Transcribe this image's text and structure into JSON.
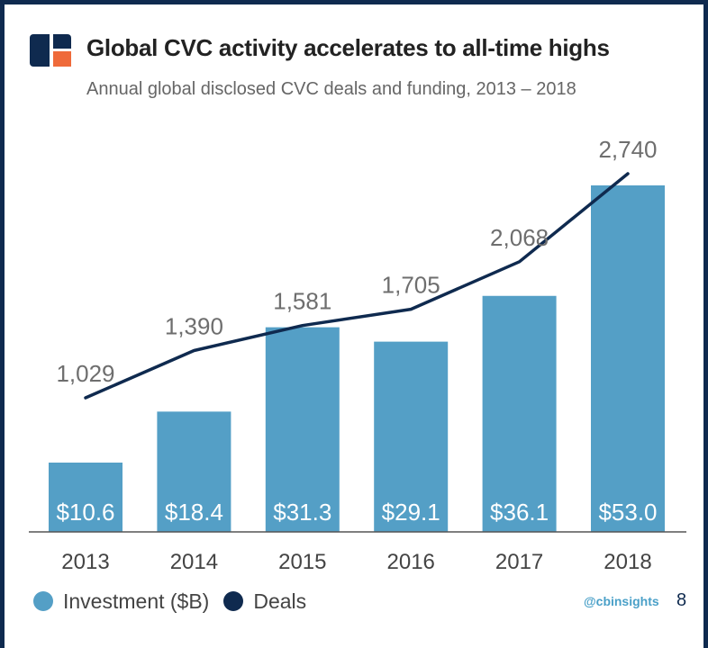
{
  "header": {
    "title": "Global CVC activity accelerates to all-time highs",
    "subtitle": "Annual global disclosed CVC deals and funding, 2013 – 2018"
  },
  "colors": {
    "bar": "#549fc6",
    "line": "#0f2a4f",
    "frame": "#0f2a4f",
    "logo_navy": "#0f2a4f",
    "logo_orange": "#ef6a3a"
  },
  "chart_data": {
    "type": "bar",
    "categories": [
      "2013",
      "2014",
      "2015",
      "2016",
      "2017",
      "2018"
    ],
    "series": [
      {
        "name": "Investment ($B)",
        "type": "bar",
        "values": [
          10.6,
          18.4,
          31.3,
          29.1,
          36.1,
          53.0
        ],
        "labels": [
          "$10.6",
          "$18.4",
          "$31.3",
          "$29.1",
          "$36.1",
          "$53.0"
        ]
      },
      {
        "name": "Deals",
        "type": "line",
        "values": [
          1029,
          1390,
          1581,
          1705,
          2068,
          2740
        ],
        "labels": [
          "1,029",
          "1,390",
          "1,581",
          "1,705",
          "2,068",
          "2,740"
        ]
      }
    ],
    "bar_axis_range": [
      0,
      53.0
    ],
    "line_axis_range": [
      0,
      2740
    ],
    "grid": false,
    "legend_position": "bottom-left"
  },
  "legend": {
    "items": [
      {
        "label": "Investment ($B)",
        "color": "#549fc6"
      },
      {
        "label": "Deals",
        "color": "#0f2a4f"
      }
    ]
  },
  "footer": {
    "handle": "@cbinsights",
    "page_number": "8"
  }
}
